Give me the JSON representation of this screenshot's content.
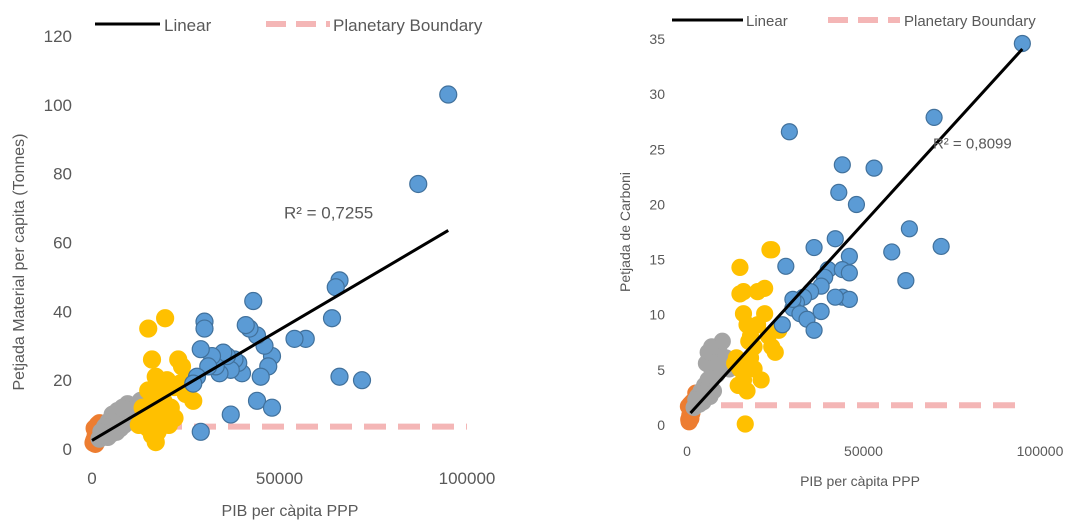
{
  "colors": {
    "high_income": "#5b9bd5",
    "upper_middle": "#ffc000",
    "lower_middle": "#a5a5a5",
    "low_income": "#ed7d31",
    "point_border": "#41719c",
    "trend": "#000000",
    "boundary": "#f4b6b6",
    "text": "#595959"
  },
  "chart_data": [
    {
      "type": "scatter",
      "xlabel": "PIB per càpita PPP",
      "ylabel": "Petjada Material per capita (Tonnes)",
      "xlim": [
        0,
        100000
      ],
      "ylim": [
        0,
        120
      ],
      "xticks": [
        0,
        50000,
        100000
      ],
      "yticks": [
        0,
        20,
        40,
        60,
        80,
        100,
        120
      ],
      "xtick_labels": [
        "0",
        "50000",
        "100000"
      ],
      "ytick_labels": [
        "0",
        "20",
        "40",
        "60",
        "80",
        "100",
        "120"
      ],
      "legend": {
        "position": "top",
        "entries": [
          "Linear",
          "Planetary Boundary"
        ]
      },
      "annotation": {
        "text": "R² = 0,7255",
        "x": 75000,
        "y": 67
      },
      "trendline": {
        "name": "Linear",
        "points": [
          [
            0,
            2.5
          ],
          [
            95000,
            63.5
          ]
        ]
      },
      "boundary": {
        "name": "Planetary Boundary",
        "y": 6.5,
        "x": [
          0,
          100000
        ]
      },
      "groups": [
        {
          "color": "low_income",
          "points": [
            [
              500,
              2
            ],
            [
              800,
              3
            ],
            [
              1200,
              5
            ],
            [
              1500,
              7
            ],
            [
              600,
              2.5
            ],
            [
              1000,
              4
            ],
            [
              1800,
              6
            ],
            [
              2200,
              4
            ],
            [
              900,
              1.5
            ],
            [
              1400,
              3.5
            ],
            [
              2500,
              5
            ],
            [
              700,
              6
            ],
            [
              1100,
              2.2
            ],
            [
              1700,
              2.8
            ],
            [
              400,
              1.8
            ],
            [
              2000,
              7.5
            ]
          ]
        },
        {
          "color": "lower_middle",
          "points": [
            [
              2000,
              3
            ],
            [
              3000,
              4
            ],
            [
              4000,
              5
            ],
            [
              5000,
              6
            ],
            [
              6000,
              7
            ],
            [
              7000,
              8
            ],
            [
              8000,
              9
            ],
            [
              9000,
              10
            ],
            [
              10000,
              11
            ],
            [
              11000,
              12
            ],
            [
              4500,
              8
            ],
            [
              5500,
              10
            ],
            [
              6500,
              5
            ],
            [
              7500,
              6
            ],
            [
              8500,
              7
            ],
            [
              3500,
              6.5
            ],
            [
              9500,
              13
            ],
            [
              12000,
              10
            ],
            [
              13000,
              14
            ],
            [
              2500,
              5
            ],
            [
              4200,
              3.5
            ],
            [
              6800,
              11
            ],
            [
              5200,
              4.5
            ],
            [
              8200,
              12
            ],
            [
              10500,
              8
            ]
          ]
        },
        {
          "color": "upper_middle",
          "points": [
            [
              15000,
              35
            ],
            [
              19500,
              38
            ],
            [
              16000,
              26
            ],
            [
              17000,
              21
            ],
            [
              15000,
              17
            ],
            [
              16000,
              14
            ],
            [
              17000,
              12
            ],
            [
              18000,
              10
            ],
            [
              14000,
              8
            ],
            [
              15000,
              6
            ],
            [
              16000,
              4
            ],
            [
              17000,
              2
            ],
            [
              20000,
              20
            ],
            [
              22000,
              18
            ],
            [
              23000,
              26
            ],
            [
              24000,
              24
            ],
            [
              25000,
              16
            ],
            [
              26000,
              20
            ],
            [
              22000,
              9
            ],
            [
              21000,
              12
            ],
            [
              19000,
              14
            ],
            [
              18000,
              16
            ],
            [
              27000,
              14
            ],
            [
              23500,
              19
            ],
            [
              20500,
              7
            ],
            [
              14500,
              10
            ],
            [
              16500,
              8
            ],
            [
              17500,
              5
            ],
            [
              13500,
              12
            ],
            [
              12500,
              7
            ]
          ]
        },
        {
          "color": "high_income",
          "points": [
            [
              95000,
              103
            ],
            [
              87000,
              77
            ],
            [
              66000,
              49
            ],
            [
              65000,
              47
            ],
            [
              64000,
              38
            ],
            [
              66000,
              21
            ],
            [
              72000,
              20
            ],
            [
              57000,
              32
            ],
            [
              54000,
              32
            ],
            [
              48000,
              27
            ],
            [
              47000,
              24
            ],
            [
              46000,
              30
            ],
            [
              44000,
              33
            ],
            [
              43000,
              43
            ],
            [
              42000,
              35
            ],
            [
              41000,
              36
            ],
            [
              40000,
              22
            ],
            [
              39000,
              25
            ],
            [
              38000,
              26
            ],
            [
              37000,
              23
            ],
            [
              36000,
              27
            ],
            [
              35000,
              28
            ],
            [
              34000,
              22
            ],
            [
              33000,
              24
            ],
            [
              32000,
              27
            ],
            [
              31000,
              24
            ],
            [
              30000,
              37
            ],
            [
              30000,
              35
            ],
            [
              29000,
              29
            ],
            [
              28000,
              21
            ],
            [
              27000,
              19
            ],
            [
              29000,
              5
            ],
            [
              37000,
              10
            ],
            [
              44000,
              14
            ],
            [
              48000,
              12
            ],
            [
              45000,
              21
            ]
          ]
        }
      ]
    },
    {
      "type": "scatter",
      "xlabel": "PIB per càpita  PPP",
      "ylabel": "Petjada de Carboni",
      "xlim": [
        0,
        100000
      ],
      "ylim": [
        0,
        35
      ],
      "xticks": [
        0,
        50000,
        100000
      ],
      "yticks": [
        0,
        5,
        10,
        15,
        20,
        25,
        30,
        35
      ],
      "xtick_labels": [
        "0",
        "50000",
        "100000"
      ],
      "ytick_labels": [
        "0",
        "5",
        "10",
        "15",
        "20",
        "25",
        "30",
        "35"
      ],
      "legend": {
        "position": "top",
        "entries": [
          "Linear",
          "Planetary Boundary"
        ]
      },
      "annotation": {
        "text": "R² = 0,8099",
        "x": 92000,
        "y": 25
      },
      "trendline": {
        "name": "Linear",
        "points": [
          [
            1000,
            1
          ],
          [
            95000,
            34
          ]
        ]
      },
      "boundary": {
        "name": "Planetary Boundary",
        "y": 1.7,
        "x": [
          0,
          95000
        ]
      },
      "groups": [
        {
          "color": "low_income",
          "points": [
            [
              500,
              0.4
            ],
            [
              800,
              0.8
            ],
            [
              1200,
              1.2
            ],
            [
              1500,
              2
            ],
            [
              600,
              0.2
            ],
            [
              1000,
              0.6
            ],
            [
              1800,
              1.5
            ],
            [
              2200,
              2.2
            ],
            [
              900,
              1.8
            ],
            [
              1400,
              1
            ],
            [
              2500,
              2.8
            ],
            [
              700,
              0.3
            ],
            [
              1100,
              0.5
            ],
            [
              400,
              1.6
            ]
          ]
        },
        {
          "color": "lower_middle",
          "points": [
            [
              2000,
              1.5
            ],
            [
              3000,
              2.5
            ],
            [
              4000,
              3
            ],
            [
              5000,
              3.5
            ],
            [
              6000,
              4
            ],
            [
              7000,
              5
            ],
            [
              8000,
              6
            ],
            [
              9000,
              7
            ],
            [
              10000,
              7.5
            ],
            [
              4500,
              2
            ],
            [
              5500,
              5.5
            ],
            [
              6500,
              2.5
            ],
            [
              7500,
              3
            ],
            [
              8500,
              4.5
            ],
            [
              3500,
              1.8
            ],
            [
              9500,
              5
            ],
            [
              11000,
              6
            ],
            [
              12000,
              5
            ],
            [
              2500,
              2.2
            ],
            [
              6000,
              6.5
            ],
            [
              7000,
              7
            ],
            [
              5000,
              2.8
            ]
          ]
        },
        {
          "color": "upper_middle",
          "points": [
            [
              15000,
              14.2
            ],
            [
              23500,
              15.8
            ],
            [
              24000,
              15.8
            ],
            [
              20000,
              12
            ],
            [
              22000,
              12.3
            ],
            [
              16000,
              12
            ],
            [
              15000,
              11.8
            ],
            [
              16000,
              10
            ],
            [
              17000,
              9
            ],
            [
              18000,
              8
            ],
            [
              14000,
              6
            ],
            [
              15000,
              5
            ],
            [
              16000,
              4
            ],
            [
              17000,
              3
            ],
            [
              19000,
              7
            ],
            [
              20000,
              9
            ],
            [
              22000,
              10
            ],
            [
              24000,
              7
            ],
            [
              25000,
              6.5
            ],
            [
              21000,
              4
            ],
            [
              18000,
              6
            ],
            [
              19000,
              5
            ],
            [
              23000,
              8
            ],
            [
              26000,
              8.5
            ],
            [
              16500,
              0
            ],
            [
              14500,
              3.5
            ],
            [
              17500,
              7.5
            ],
            [
              13500,
              5.5
            ]
          ]
        },
        {
          "color": "high_income",
          "points": [
            [
              95000,
              34.5
            ],
            [
              70000,
              27.8
            ],
            [
              29000,
              26.5
            ],
            [
              44000,
              23.5
            ],
            [
              53000,
              23.2
            ],
            [
              43000,
              21
            ],
            [
              48000,
              19.9
            ],
            [
              42000,
              16.8
            ],
            [
              36000,
              16
            ],
            [
              46000,
              15.2
            ],
            [
              58000,
              15.6
            ],
            [
              63000,
              17.7
            ],
            [
              72000,
              16.1
            ],
            [
              62000,
              13
            ],
            [
              40000,
              14
            ],
            [
              39000,
              13.3
            ],
            [
              44000,
              14
            ],
            [
              46000,
              13.7
            ],
            [
              38000,
              12.5
            ],
            [
              35000,
              12
            ],
            [
              33000,
              11.5
            ],
            [
              31000,
              11
            ],
            [
              30000,
              10.5
            ],
            [
              32000,
              10
            ],
            [
              34000,
              9.5
            ],
            [
              36000,
              8.5
            ],
            [
              38000,
              10.2
            ],
            [
              27000,
              9
            ],
            [
              28000,
              14.3
            ],
            [
              44000,
              11.5
            ],
            [
              46000,
              11.3
            ],
            [
              42000,
              11.5
            ],
            [
              30000,
              11.3
            ]
          ]
        }
      ]
    }
  ]
}
